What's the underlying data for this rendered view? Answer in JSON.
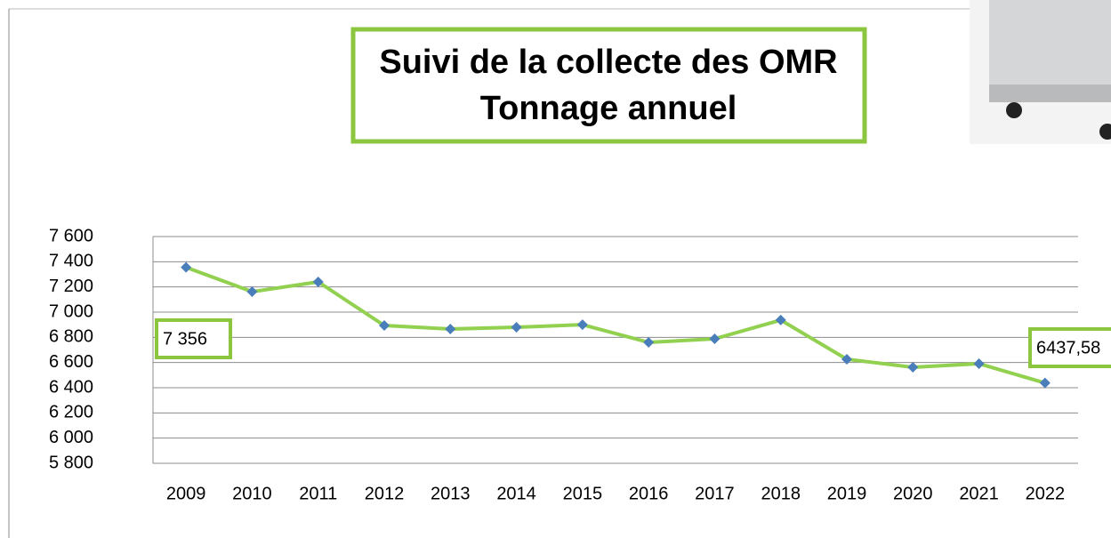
{
  "chart_data": {
    "type": "line",
    "title": [
      "Suivi de la collecte des OMR",
      "Tonnage annuel"
    ],
    "categories": [
      "2009",
      "2010",
      "2011",
      "2012",
      "2013",
      "2014",
      "2015",
      "2016",
      "2017",
      "2018",
      "2019",
      "2020",
      "2021",
      "2022"
    ],
    "values": [
      7356,
      7162,
      7240,
      6894,
      6866,
      6880,
      6900,
      6760,
      6788,
      6937,
      6626,
      6562,
      6591,
      6437.58
    ],
    "value_labels": [
      "7 356",
      null,
      null,
      null,
      null,
      null,
      null,
      null,
      null,
      null,
      null,
      null,
      null,
      "6437,58"
    ],
    "color": "#92d050",
    "marker_color": "#4a7ebb",
    "ylim": [
      5800,
      7600
    ],
    "yticks": [
      {
        "value": 5800,
        "label": "5 800"
      },
      {
        "value": 6000,
        "label": "6 000"
      },
      {
        "value": 6200,
        "label": "6 200"
      },
      {
        "value": 6400,
        "label": "6 400"
      },
      {
        "value": 6600,
        "label": "6 600"
      },
      {
        "value": 6800,
        "label": "6 800"
      },
      {
        "value": 7000,
        "label": "7 000"
      },
      {
        "value": 7200,
        "label": "7 200"
      },
      {
        "value": 7400,
        "label": "7 400"
      },
      {
        "value": 7600,
        "label": "7 600"
      }
    ],
    "grid": true
  }
}
